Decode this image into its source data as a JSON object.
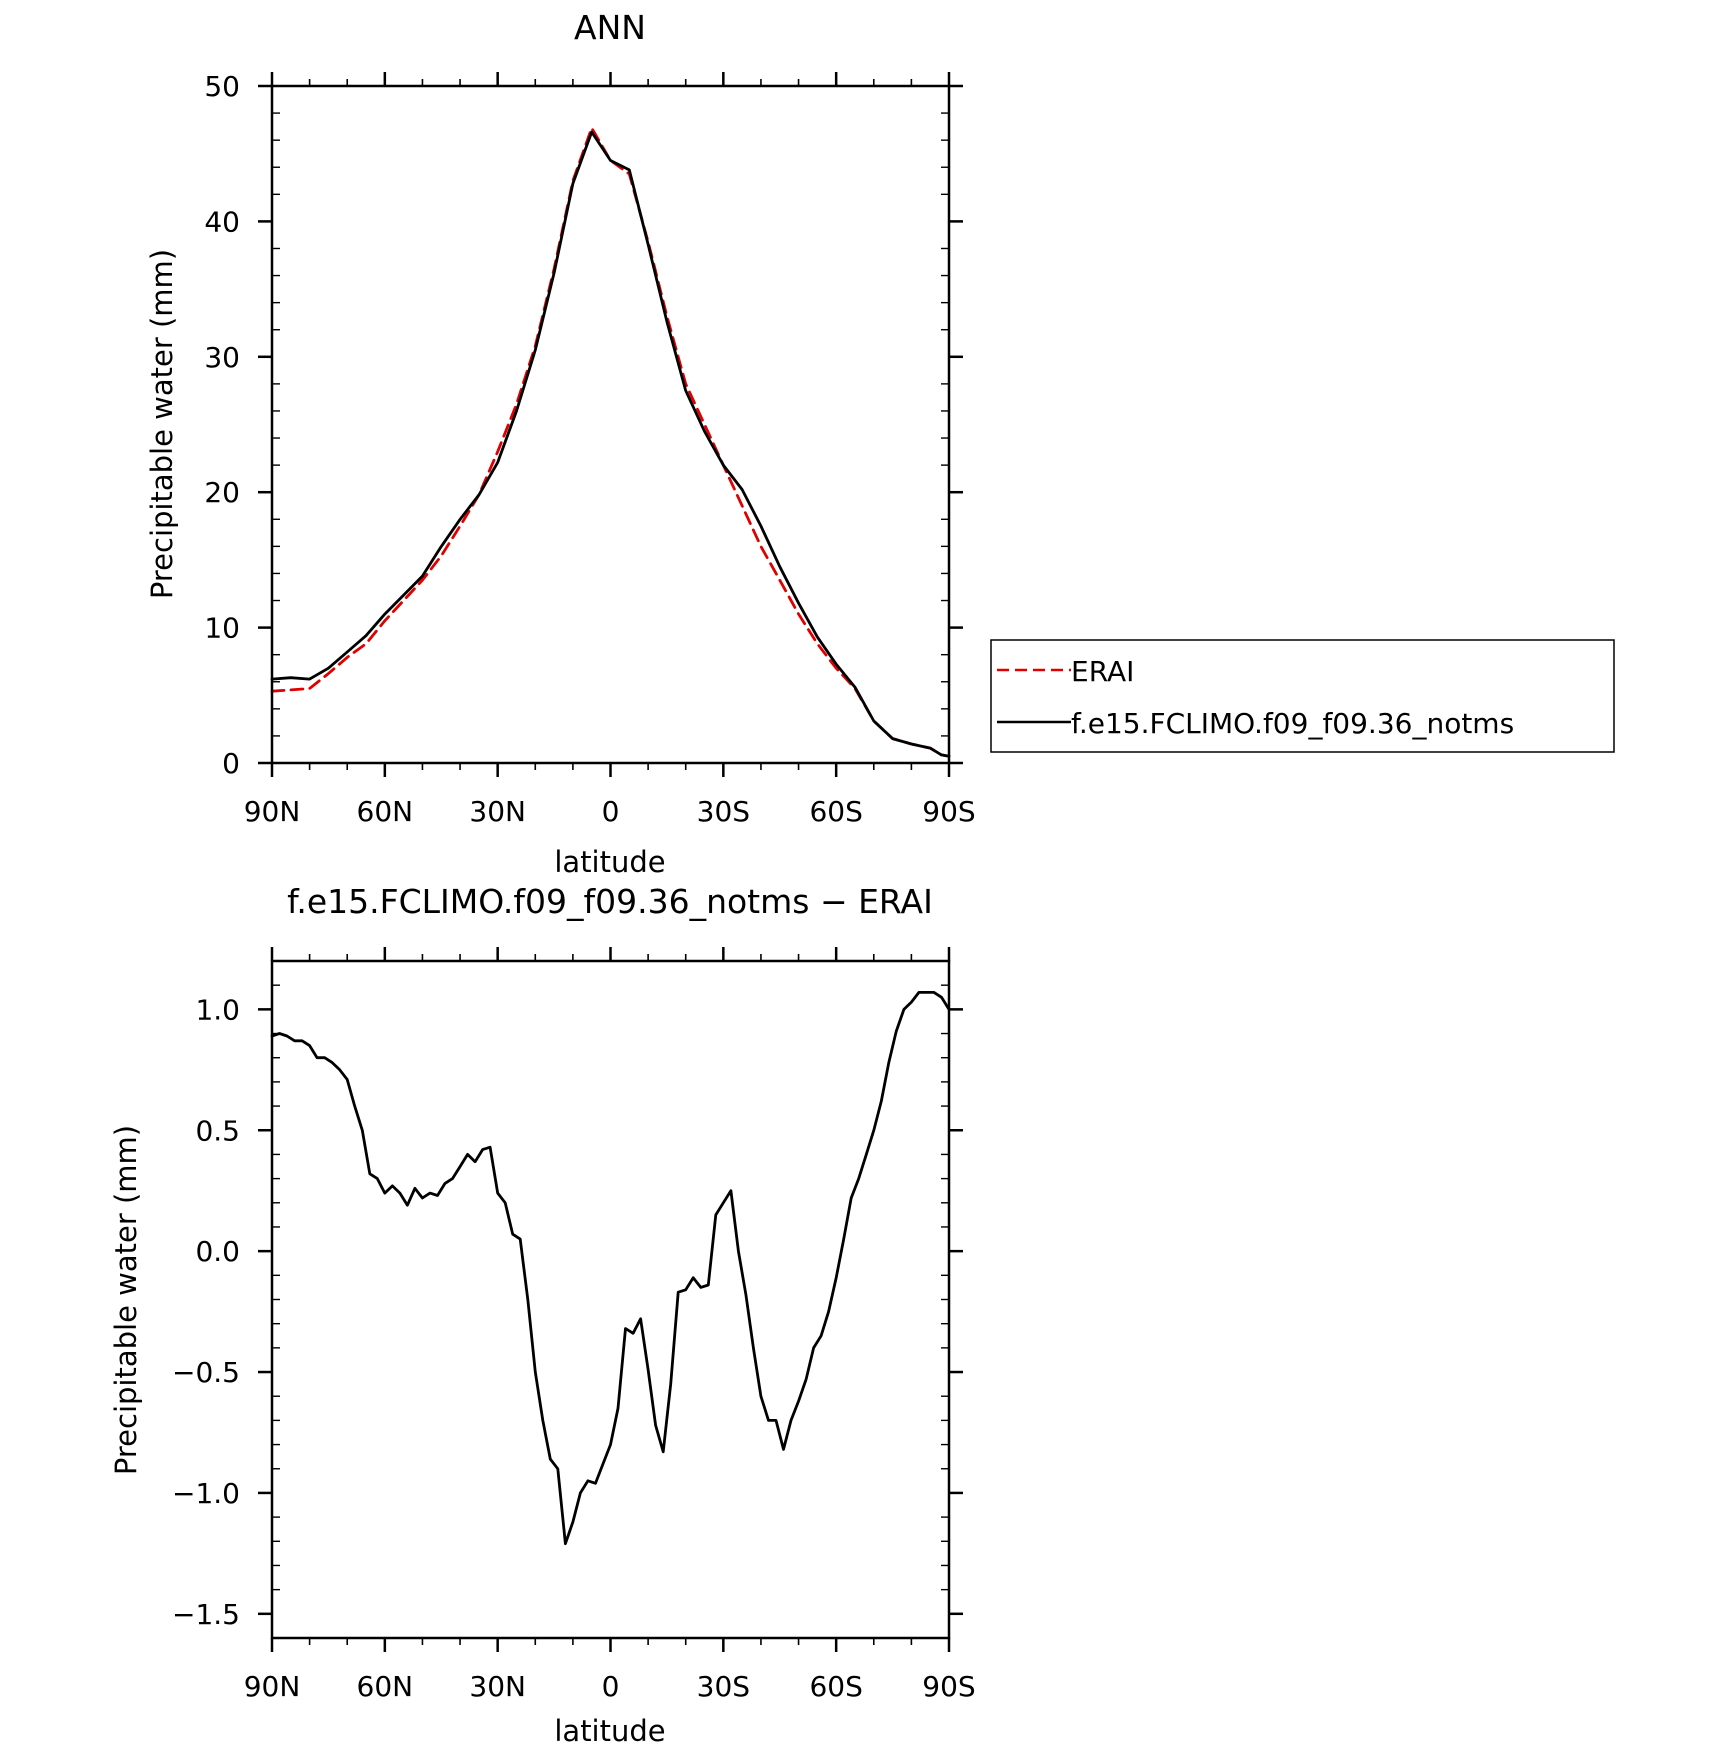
{
  "chart_data": [
    {
      "type": "line",
      "title": "ANN",
      "xlabel": "latitude",
      "ylabel": "Precipitable water (mm)",
      "xlim": [
        90,
        -90
      ],
      "ylim": [
        0,
        50
      ],
      "xticks": [
        90,
        60,
        30,
        0,
        -30,
        -60,
        -90
      ],
      "xtick_labels": [
        "90N",
        "60N",
        "30N",
        "0",
        "30S",
        "60S",
        "90S"
      ],
      "yticks": [
        0,
        10,
        20,
        30,
        40,
        50
      ],
      "ytick_labels": [
        "0",
        "10",
        "20",
        "30",
        "40",
        "50"
      ],
      "grid": false,
      "legend_position": "right",
      "series": [
        {
          "name": "ERAI",
          "color": "#e00000",
          "dash": "dashed",
          "x": [
            90,
            85,
            80,
            75,
            70,
            65,
            60,
            55,
            50,
            45,
            40,
            35,
            30,
            25,
            20,
            15,
            10,
            5,
            0,
            -5,
            -10,
            -15,
            -20,
            -25,
            -30,
            -35,
            -40,
            -45,
            -50,
            -55,
            -60,
            -65,
            -70,
            -75,
            -80,
            -85,
            -88,
            -90
          ],
          "y": [
            5.3,
            5.4,
            5.5,
            6.6,
            7.8,
            8.8,
            10.5,
            12.0,
            13.5,
            15.3,
            17.5,
            19.8,
            23.0,
            26.5,
            30.8,
            36.5,
            43.0,
            46.9,
            44.5,
            43.5,
            38.5,
            33.0,
            28.0,
            25.0,
            22.0,
            19.0,
            16.0,
            13.5,
            11.0,
            8.8,
            7.0,
            5.5,
            3.1,
            1.8,
            1.4,
            1.1,
            0.6,
            0.5
          ]
        },
        {
          "name": "f.e15.FCLIMO.f09_f09.36_notms",
          "color": "#000000",
          "dash": "solid",
          "x": [
            90,
            85,
            80,
            75,
            70,
            65,
            60,
            55,
            50,
            45,
            40,
            35,
            30,
            25,
            20,
            15,
            10,
            5,
            0,
            -5,
            -10,
            -15,
            -20,
            -25,
            -30,
            -35,
            -40,
            -45,
            -50,
            -55,
            -60,
            -65,
            -70,
            -75,
            -80,
            -85,
            -88,
            -90
          ],
          "y": [
            6.2,
            6.3,
            6.2,
            7.0,
            8.2,
            9.4,
            11.0,
            12.4,
            13.8,
            16.0,
            18.0,
            19.8,
            22.2,
            26.0,
            30.5,
            36.2,
            42.8,
            46.6,
            44.5,
            43.8,
            38.3,
            32.6,
            27.5,
            24.5,
            22.0,
            20.2,
            17.5,
            14.5,
            11.8,
            9.3,
            7.3,
            5.6,
            3.1,
            1.8,
            1.4,
            1.1,
            0.6,
            0.5
          ]
        }
      ]
    },
    {
      "type": "line",
      "title": "f.e15.FCLIMO.f09_f09.36_notms − ERAI",
      "xlabel": "latitude",
      "ylabel": "Precipitable water (mm)",
      "xlim": [
        90,
        -90
      ],
      "ylim": [
        -1.6,
        1.2
      ],
      "xticks": [
        90,
        60,
        30,
        0,
        -30,
        -60,
        -90
      ],
      "xtick_labels": [
        "90N",
        "60N",
        "30N",
        "0",
        "30S",
        "60S",
        "90S"
      ],
      "yticks": [
        1.0,
        0.5,
        0.0,
        -0.5,
        -1.0,
        -1.5
      ],
      "ytick_labels": [
        "1.0",
        "0.5",
        "0.0",
        "−0.5",
        "−1.0",
        "−1.5"
      ],
      "grid": false,
      "series": [
        {
          "color": "#000000",
          "dash": "solid",
          "x": [
            90,
            88,
            86,
            84,
            82,
            80,
            78,
            76,
            74,
            72,
            70,
            68,
            66,
            64,
            62,
            60,
            58,
            56,
            54,
            52,
            50,
            48,
            46,
            44,
            42,
            40,
            38,
            36,
            34,
            32,
            30,
            28,
            26,
            24,
            22,
            20,
            18,
            16,
            14,
            12,
            10,
            8,
            6,
            4,
            2,
            0,
            -2,
            -4,
            -6,
            -8,
            -10,
            -12,
            -14,
            -16,
            -18,
            -20,
            -22,
            -24,
            -26,
            -28,
            -30,
            -32,
            -34,
            -36,
            -38,
            -40,
            -42,
            -44,
            -46,
            -48,
            -50,
            -52,
            -54,
            -56,
            -58,
            -60,
            -62,
            -64,
            -66,
            -68,
            -70,
            -72,
            -74,
            -76,
            -78,
            -80,
            -82,
            -84,
            -86,
            -88,
            -90
          ],
          "y": [
            0.89,
            0.9,
            0.89,
            0.87,
            0.87,
            0.85,
            0.8,
            0.8,
            0.78,
            0.75,
            0.71,
            0.6,
            0.5,
            0.32,
            0.3,
            0.24,
            0.27,
            0.24,
            0.19,
            0.26,
            0.22,
            0.24,
            0.23,
            0.28,
            0.3,
            0.35,
            0.4,
            0.37,
            0.42,
            0.43,
            0.24,
            0.2,
            0.07,
            0.05,
            -0.2,
            -0.5,
            -0.7,
            -0.86,
            -0.9,
            -1.21,
            -1.12,
            -1.0,
            -0.95,
            -0.96,
            -0.88,
            -0.8,
            -0.65,
            -0.32,
            -0.34,
            -0.28,
            -0.49,
            -0.72,
            -0.83,
            -0.55,
            -0.17,
            -0.16,
            -0.11,
            -0.15,
            -0.14,
            0.15,
            0.2,
            0.25,
            0.0,
            -0.18,
            -0.4,
            -0.6,
            -0.7,
            -0.7,
            -0.82,
            -0.7,
            -0.62,
            -0.53,
            -0.4,
            -0.35,
            -0.25,
            -0.11,
            0.05,
            0.22,
            0.3,
            0.4,
            0.5,
            0.62,
            0.78,
            0.91,
            1.0,
            1.03,
            1.07,
            1.07,
            1.07,
            1.05,
            1.0
          ]
        }
      ]
    }
  ],
  "legend": {
    "entries": [
      {
        "label": "ERAI",
        "color": "#e00000",
        "dash": "dashed"
      },
      {
        "label": "f.e15.FCLIMO.f09_f09.36_notms",
        "color": "#000000",
        "dash": "solid"
      }
    ]
  }
}
